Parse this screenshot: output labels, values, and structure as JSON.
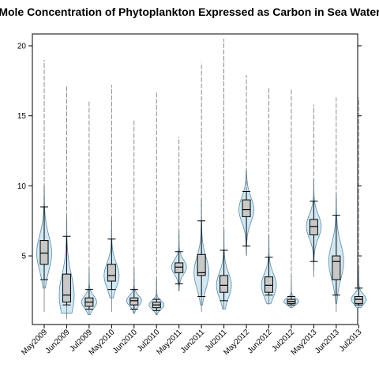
{
  "chart_data": {
    "type": "box-violin",
    "title": "Mole Concentration of Phytoplankton Expressed as Carbon in Sea Water",
    "xlabel": "",
    "ylabel": "",
    "ylim": [
      0,
      21
    ],
    "yticks": [
      5,
      10,
      15,
      20
    ],
    "categories": [
      "May2009",
      "Jun2009",
      "Jul2009",
      "May2010",
      "Jun2010",
      "Jul2010",
      "May2011",
      "Jun2011",
      "Jul2011",
      "May2012",
      "Jun2012",
      "Jul2012",
      "May2013",
      "Jun2013",
      "Jul2013"
    ],
    "series": [
      {
        "min": 1.0,
        "q1": 4.4,
        "median": 5.2,
        "q3": 6.1,
        "whisker_low": 3.3,
        "whisker_high": 8.5,
        "max": 19.0
      },
      {
        "min": 0.5,
        "q1": 1.7,
        "median": 2.2,
        "q3": 3.7,
        "whisker_low": 1.5,
        "whisker_high": 6.4,
        "max": 17.1
      },
      {
        "min": 0.8,
        "q1": 1.4,
        "median": 1.7,
        "q3": 2.0,
        "whisker_low": 1.2,
        "whisker_high": 2.6,
        "max": 16.1
      },
      {
        "min": 1.0,
        "q1": 3.2,
        "median": 3.6,
        "q3": 4.4,
        "whisker_low": 2.6,
        "whisker_high": 6.2,
        "max": 17.2
      },
      {
        "min": 0.9,
        "q1": 1.5,
        "median": 1.8,
        "q3": 2.0,
        "whisker_low": 1.2,
        "whisker_high": 2.6,
        "max": 14.7
      },
      {
        "min": 0.8,
        "q1": 1.3,
        "median": 1.5,
        "q3": 1.7,
        "whisker_low": 1.1,
        "whisker_high": 1.9,
        "max": 16.7
      },
      {
        "min": 2.5,
        "q1": 3.8,
        "median": 4.2,
        "q3": 4.5,
        "whisker_low": 3.0,
        "whisker_high": 5.3,
        "max": 13.5
      },
      {
        "min": 1.0,
        "q1": 3.6,
        "median": 3.8,
        "q3": 5.1,
        "whisker_low": 2.1,
        "whisker_high": 7.5,
        "max": 18.8
      },
      {
        "min": 1.2,
        "q1": 2.4,
        "median": 2.9,
        "q3": 3.6,
        "whisker_low": 1.8,
        "whisker_high": 5.4,
        "max": 20.5
      },
      {
        "min": 5.0,
        "q1": 7.8,
        "median": 8.3,
        "q3": 9.0,
        "whisker_low": 5.7,
        "whisker_high": 9.6,
        "max": 17.9
      },
      {
        "min": 1.5,
        "q1": 2.4,
        "median": 2.9,
        "q3": 3.5,
        "whisker_low": 2.2,
        "whisker_high": 4.9,
        "max": 17.0
      },
      {
        "min": 1.3,
        "q1": 1.6,
        "median": 1.75,
        "q3": 1.9,
        "whisker_low": 1.5,
        "whisker_high": 2.1,
        "max": 17.0
      },
      {
        "min": 3.5,
        "q1": 6.5,
        "median": 7.1,
        "q3": 7.6,
        "whisker_low": 4.6,
        "whisker_high": 8.9,
        "max": 15.8
      },
      {
        "min": 1.0,
        "q1": 3.3,
        "median": 4.6,
        "q3": 5.0,
        "whisker_low": 2.2,
        "whisker_high": 7.9,
        "max": 16.3
      },
      {
        "min": 1.3,
        "q1": 1.6,
        "median": 1.9,
        "q3": 2.1,
        "whisker_low": 1.5,
        "whisker_high": 2.7,
        "max": 16.3
      }
    ],
    "colors": {
      "violin_fill": "#d2e8f2",
      "violin_stroke": "#5a8aa8",
      "box_fill": "#c8c8c8",
      "line": "#000000",
      "tail": "#707070"
    },
    "grid": false,
    "legend": "none"
  }
}
